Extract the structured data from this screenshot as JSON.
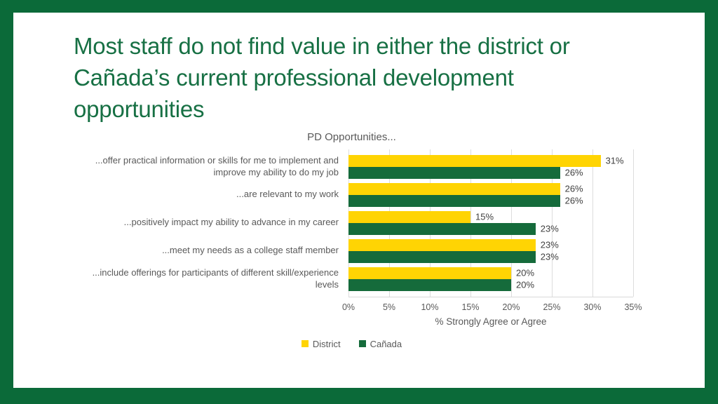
{
  "slide": {
    "title": "Most staff do not find value in either the district or Cañada’s current professional development opportunities"
  },
  "chart_data": {
    "type": "bar",
    "orientation": "horizontal",
    "title": "PD Opportunities...",
    "categories": [
      "...offer practical information or skills for me to implement and improve my ability to do my job",
      "...are relevant to my work",
      "...positively impact my ability to advance in my career",
      "...meet my needs as a college staff member",
      "...include offerings for participants of different skill/experience levels"
    ],
    "series": [
      {
        "name": "District",
        "color": "#FFD403",
        "values": [
          31,
          26,
          15,
          23,
          20
        ]
      },
      {
        "name": "Cañada",
        "color": "#156B3B",
        "values": [
          26,
          26,
          23,
          23,
          20
        ]
      }
    ],
    "value_label_suffix": "%",
    "xlabel": "% Strongly Agree or Agree",
    "xlim": [
      0,
      35
    ],
    "x_ticks": [
      "0%",
      "5%",
      "10%",
      "15%",
      "20%",
      "25%",
      "30%",
      "35%"
    ],
    "grid": true,
    "legend_position": "bottom"
  },
  "colors": {
    "frame_green": "#0b6a39",
    "title_green": "#177044",
    "axis_text": "#595959",
    "value_label_text": "#404040",
    "gridline": "#dcdcdc",
    "background": "#ffffff"
  }
}
